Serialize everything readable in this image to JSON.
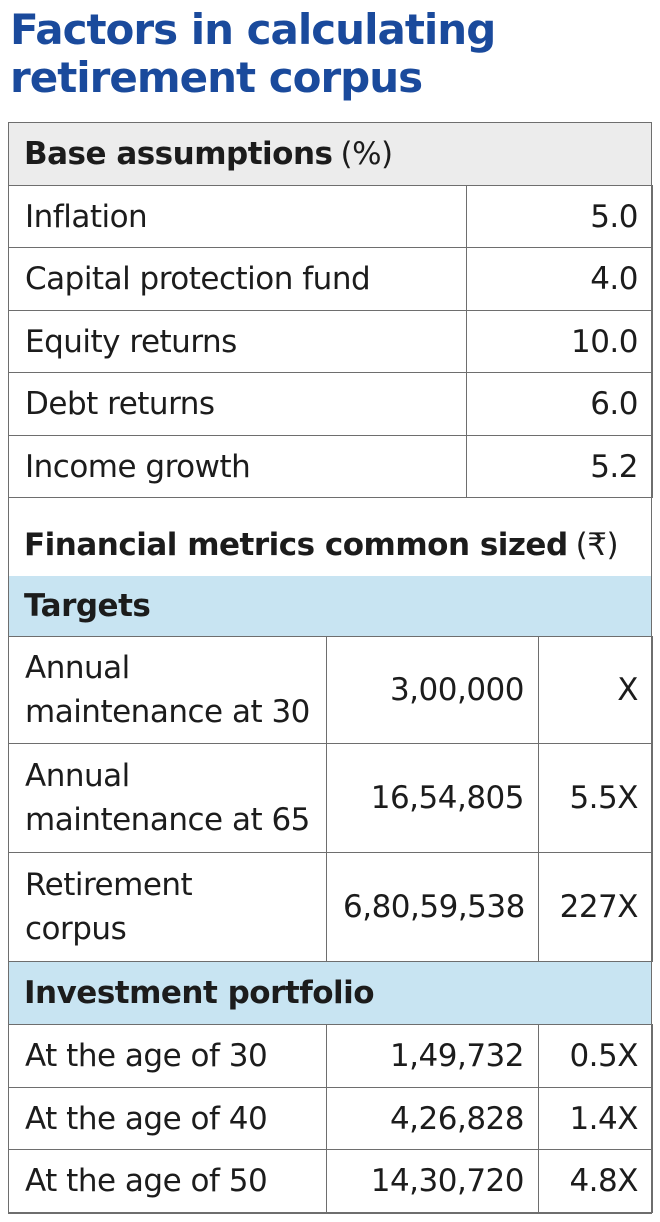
{
  "title": "Factors in calculating\nretirement corpus",
  "base": {
    "heading": "Base assumptions",
    "unit": "(%)",
    "rows": [
      {
        "label": "Inflation",
        "value": "5.0"
      },
      {
        "label": "Capital protection fund",
        "value": "4.0"
      },
      {
        "label": "Equity returns",
        "value": "10.0"
      },
      {
        "label": "Debt returns",
        "value": "6.0"
      },
      {
        "label": "Income growth",
        "value": "5.2"
      }
    ]
  },
  "metrics": {
    "heading": "Financial metrics common sized",
    "unit": "(₹)"
  },
  "targets": {
    "heading": "Targets",
    "rows": [
      {
        "label1": "Annual",
        "label2": "maintenance at 30",
        "value": "3,00,000",
        "multiple": "X"
      },
      {
        "label1": "Annual",
        "label2": "maintenance at 65",
        "value": "16,54,805",
        "multiple": "5.5X"
      },
      {
        "label1": "Retirement",
        "label2": "corpus",
        "value": "6,80,59,538",
        "multiple": "227X"
      }
    ]
  },
  "portfolio": {
    "heading": "Investment portfolio",
    "rows": [
      {
        "label": "At the age of 30",
        "value": "1,49,732",
        "multiple": "0.5X"
      },
      {
        "label": "At the age of 40",
        "value": "4,26,828",
        "multiple": "1.4X"
      },
      {
        "label": "At the age of 50",
        "value": "14,30,720",
        "multiple": "4.8X"
      }
    ]
  }
}
